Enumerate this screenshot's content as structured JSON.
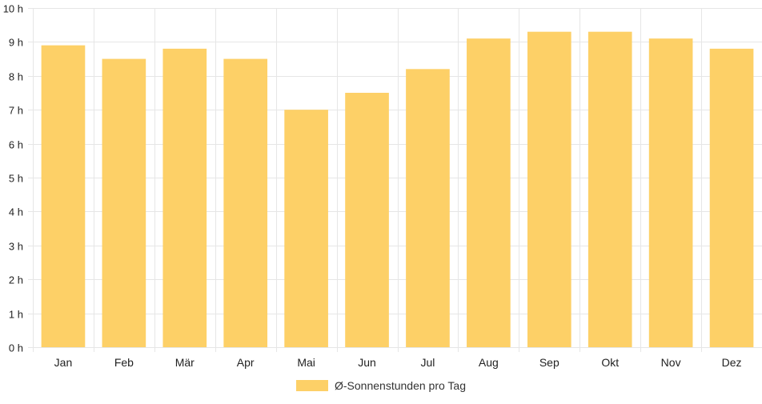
{
  "chart_data": {
    "type": "bar",
    "categories": [
      "Jan",
      "Feb",
      "Mär",
      "Apr",
      "Mai",
      "Jun",
      "Jul",
      "Aug",
      "Sep",
      "Okt",
      "Nov",
      "Dez"
    ],
    "series": [
      {
        "name": "Ø-Sonnenstunden pro Tag",
        "values": [
          8.9,
          8.5,
          8.8,
          8.5,
          7.0,
          7.5,
          8.2,
          9.1,
          9.3,
          9.3,
          9.1,
          8.8
        ],
        "color": "#fdd067"
      }
    ],
    "y_ticks": [
      "0 h",
      "1 h",
      "2 h",
      "3 h",
      "4 h",
      "5 h",
      "6 h",
      "7 h",
      "8 h",
      "9 h",
      "10 h"
    ],
    "ylim": [
      0,
      10
    ],
    "grid": true,
    "legend_position": "bottom",
    "grid_color": "#e6e6e6"
  }
}
